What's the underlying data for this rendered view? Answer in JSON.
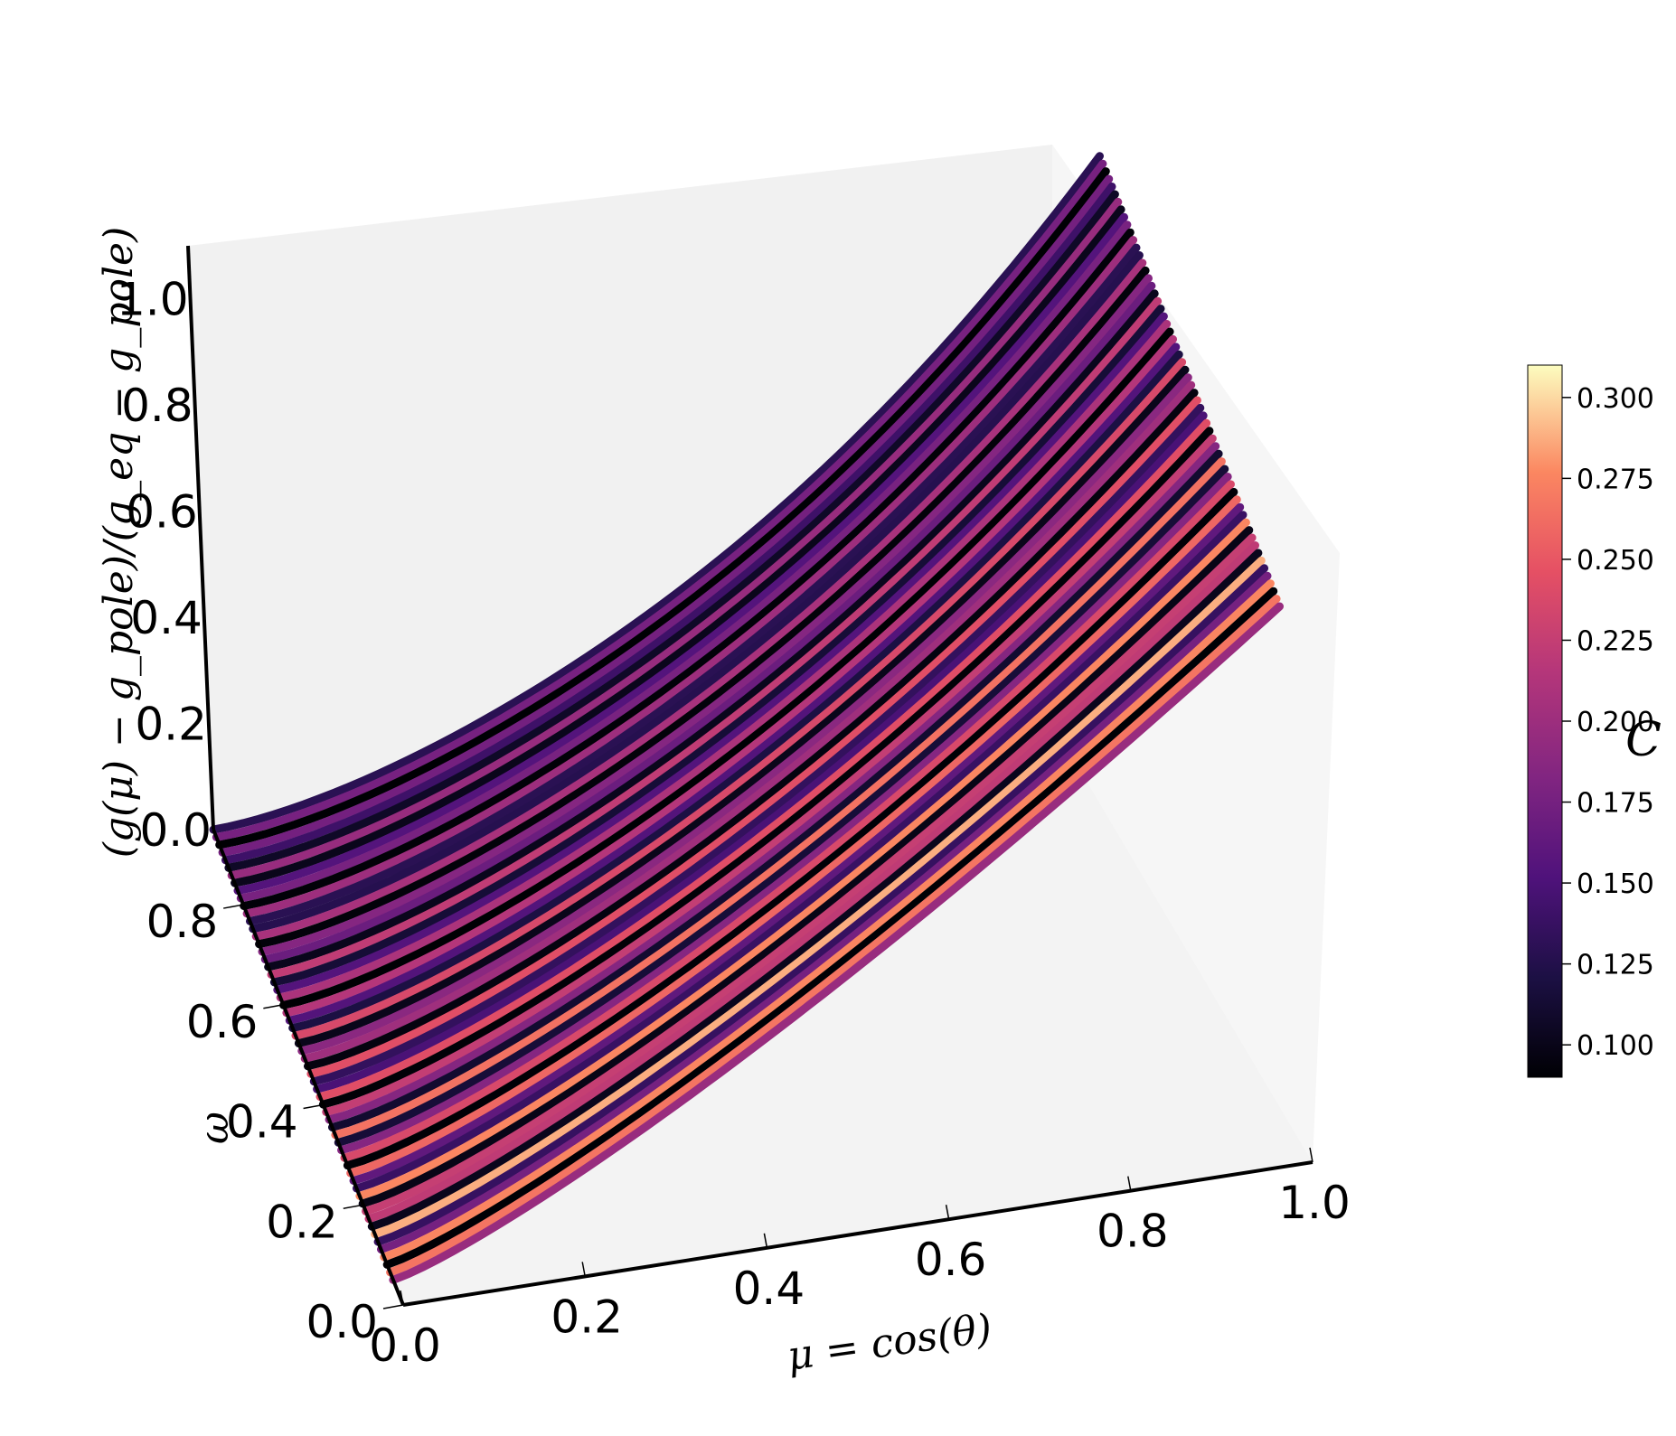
{
  "chart_data": {
    "type": "surface3d",
    "title": "",
    "xlabel": "μ = cos(θ)",
    "ylabel": "ω",
    "zlabel": "(g(μ) − g_pole)/(g_eq − g_pole)",
    "x_ticks": [
      "0.0",
      "0.2",
      "0.4",
      "0.6",
      "0.8",
      "1.0"
    ],
    "y_ticks": [
      "0.0",
      "0.2",
      "0.4",
      "0.6",
      "0.8"
    ],
    "z_ticks": [
      "0.0",
      "0.2",
      "0.4",
      "0.6",
      "0.8",
      "1.0"
    ],
    "xlim": [
      0,
      1
    ],
    "ylim": [
      0,
      0.95
    ],
    "zlim": [
      0,
      1.1
    ],
    "colormap": "magma",
    "colorbar": {
      "label": "C",
      "range": [
        0.09,
        0.31
      ],
      "ticks": [
        "0.100",
        "0.125",
        "0.150",
        "0.175",
        "0.200",
        "0.225",
        "0.250",
        "0.275",
        "0.300"
      ]
    },
    "curves": {
      "description_of_family": "normalized gravity g vs mu for each omega; rises from 0 at mu=0 to 1 at mu=1",
      "omega_min": 0.05,
      "omega_max": 0.95,
      "count": 60
    }
  }
}
